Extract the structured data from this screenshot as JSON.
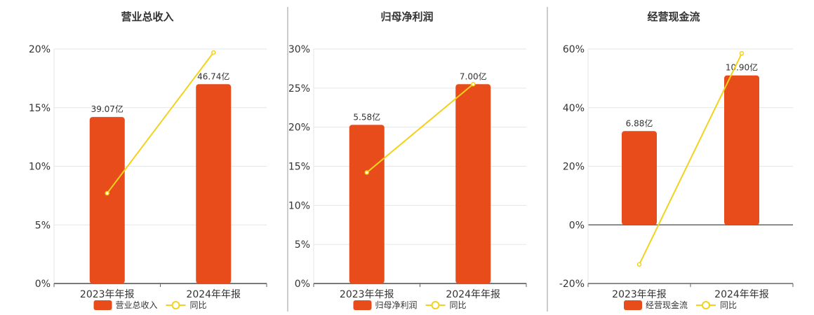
{
  "colors": {
    "bar": "#e84c1a",
    "line": "#f2d21b",
    "grid": "#e6e6e6",
    "axis": "#666666",
    "divider": "#999999"
  },
  "legend_line_label": "同比",
  "chart_data": [
    {
      "type": "bar",
      "title": "营业总收入",
      "categories": [
        "2023年年报",
        "2024年年报"
      ],
      "bar_values": [
        14.2,
        17.0
      ],
      "bar_labels": [
        "39.07亿",
        "46.74亿"
      ],
      "line_values": [
        7.7,
        19.7
      ],
      "ylim": [
        0,
        20
      ],
      "yticks": [
        0,
        5,
        10,
        15,
        20
      ],
      "yticklabels": [
        "0%",
        "5%",
        "10%",
        "15%",
        "20%"
      ],
      "legend": {
        "bar": "营业总收入",
        "line": "同比"
      }
    },
    {
      "type": "bar",
      "title": "归母净利润",
      "categories": [
        "2023年年报",
        "2024年年报"
      ],
      "bar_values": [
        20.3,
        25.5
      ],
      "bar_labels": [
        "5.58亿",
        "7.00亿"
      ],
      "line_values": [
        14.2,
        25.5
      ],
      "ylim": [
        0,
        30
      ],
      "yticks": [
        0,
        5,
        10,
        15,
        20,
        25,
        30
      ],
      "yticklabels": [
        "0%",
        "5%",
        "10%",
        "15%",
        "20%",
        "25%",
        "30%"
      ],
      "legend": {
        "bar": "归母净利润",
        "line": "同比"
      }
    },
    {
      "type": "bar",
      "title": "经营现金流",
      "categories": [
        "2023年年报",
        "2024年年报"
      ],
      "bar_values": [
        32.0,
        51.0
      ],
      "bar_labels": [
        "6.88亿",
        "10.90亿"
      ],
      "line_values": [
        -13.5,
        58.5
      ],
      "ylim": [
        -20,
        60
      ],
      "yticks": [
        -20,
        0,
        20,
        40,
        60
      ],
      "yticklabels": [
        "-20%",
        "0%",
        "20%",
        "40%",
        "60%"
      ],
      "legend": {
        "bar": "经营现金流",
        "line": "同比"
      }
    }
  ]
}
